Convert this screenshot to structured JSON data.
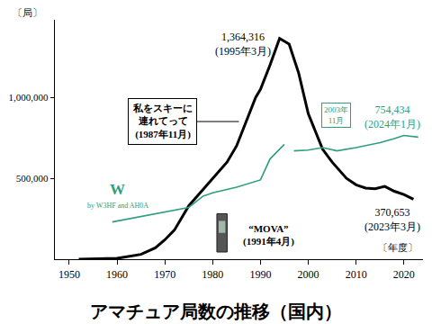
{
  "chart_data": {
    "type": "line",
    "title": "アマチュア局数の推移（国内）",
    "ylabel": "〔局〕",
    "xlabel": "〔年度〕",
    "xlim": [
      1947,
      2024
    ],
    "xticks": [
      1950,
      1960,
      1970,
      1980,
      1990,
      2000,
      2010,
      2020
    ],
    "ylim": [
      0,
      1480000
    ],
    "yticks": [
      {
        "value": 500000,
        "label": "500,000"
      },
      {
        "value": 1000000,
        "label": "1,000,000"
      }
    ],
    "grid": false,
    "series": [
      {
        "color": "#000000",
        "x": [
          1952,
          1955,
          1960,
          1965,
          1968,
          1970,
          1972,
          1975,
          1978,
          1980,
          1983,
          1985,
          1987,
          1989,
          1990,
          1992,
          1994,
          1996,
          1998,
          2000,
          2003,
          2005,
          2008,
          2010,
          2012,
          2014,
          2016,
          2018,
          2020,
          2022
        ],
        "values": [
          0,
          1000,
          5000,
          30000,
          70000,
          120000,
          180000,
          330000,
          430000,
          500000,
          600000,
          700000,
          850000,
          1000000,
          1050000,
          1200000,
          1364316,
          1330000,
          1150000,
          900000,
          680000,
          600000,
          500000,
          460000,
          440000,
          435000,
          450000,
          420000,
          400000,
          370653
        ],
        "max_label": [
          "1,364,316",
          "(1995年3月)"
        ],
        "last_label": [
          "370,653",
          "(2023年3月)"
        ]
      },
      {
        "name": "W",
        "color": "#2e9e7e",
        "subtitle": "by W3HF and AH0A",
        "x": [
          1959,
          1965,
          1970,
          1975,
          1978,
          1980,
          1985,
          1990,
          1992,
          1995,
          1996,
          1997,
          2000,
          2003,
          2006,
          2010,
          2015,
          2018,
          2020,
          2023
        ],
        "values": [
          230000,
          265000,
          290000,
          320000,
          390000,
          410000,
          445000,
          490000,
          620000,
          710000,
          null,
          670000,
          675000,
          690000,
          670000,
          690000,
          720000,
          745000,
          765000,
          754434
        ],
        "last_label": [
          "754,434",
          "(2024年1月)"
        ],
        "note": [
          "2003年",
          "11月"
        ]
      }
    ],
    "annotations": [
      [
        "私をスキーに",
        "連れてって",
        "(1987年11月)"
      ],
      [
        "“MOVA”",
        "(1991年4月)"
      ]
    ]
  }
}
